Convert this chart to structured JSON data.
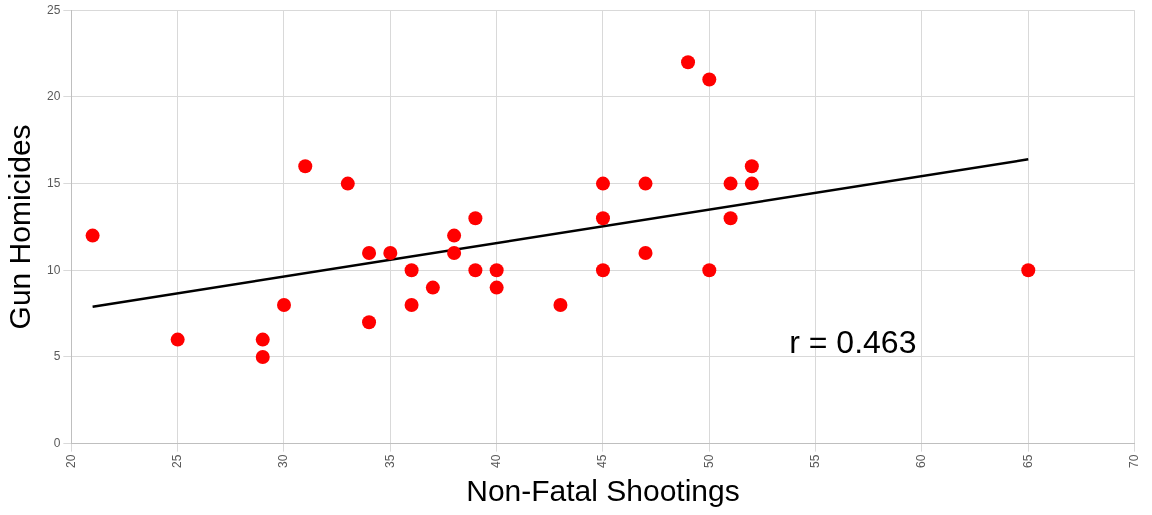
{
  "chart_data": {
    "type": "scatter",
    "xlabel": "Non-Fatal Shootings",
    "ylabel": "Gun Homicides",
    "xlim": [
      20,
      70
    ],
    "xticks": [
      20,
      25,
      30,
      35,
      40,
      45,
      50,
      55,
      60,
      65,
      70
    ],
    "ylim": [
      0,
      25
    ],
    "yticks": [
      0,
      5,
      10,
      15,
      20,
      25
    ],
    "grid": true,
    "legend": false,
    "marker": "circle",
    "annotations": [
      "r = 0.463"
    ],
    "series": [
      {
        "color": "#ff0000",
        "x": [
          21,
          25,
          29,
          29,
          30,
          31,
          33,
          34,
          34,
          35,
          36,
          36,
          37,
          38,
          38,
          39,
          39,
          40,
          40,
          43,
          45,
          45,
          45,
          47,
          47,
          49,
          50,
          50,
          51,
          51,
          52,
          52,
          65
        ],
        "values": [
          12,
          6,
          6,
          5,
          8,
          16,
          15,
          11,
          7,
          11,
          10,
          8,
          9,
          12,
          11,
          13,
          10,
          10,
          9,
          8,
          15,
          13,
          10,
          15,
          11,
          22,
          21,
          10,
          15,
          13,
          16,
          15,
          10
        ]
      },
      {
        "type": "line",
        "color": "#000000",
        "x": [
          21,
          65
        ],
        "values": [
          7.9,
          16.4
        ],
        "marker": "none"
      }
    ]
  }
}
